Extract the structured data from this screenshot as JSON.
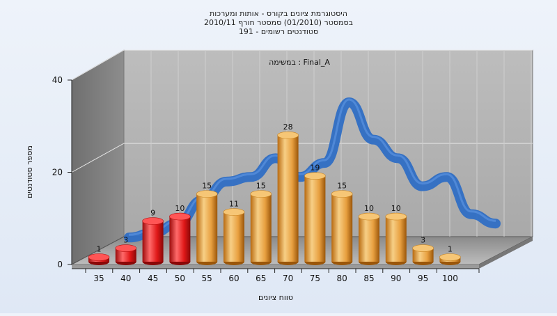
{
  "chart_data": {
    "type": "bar",
    "title_lines": [
      "היסטוגרמת ציונים בקורס - אותות ומערכות",
      "בסמסטר  (01/2010)  סמסטר חורף 2010/11",
      "סטודנטים רשומים - 191"
    ],
    "annotation": "Final_A : במשימה",
    "categories": [
      "35",
      "40",
      "45",
      "50",
      "55",
      "60",
      "65",
      "70",
      "75",
      "80",
      "85",
      "90",
      "95",
      "100"
    ],
    "values": [
      1,
      3,
      9,
      10,
      15,
      11,
      15,
      28,
      19,
      15,
      10,
      10,
      3,
      1
    ],
    "bar_colors": [
      "#e01818",
      "#e01818",
      "#e01818",
      "#e01818",
      "#e8a040",
      "#e8a040",
      "#e8a040",
      "#e8a040",
      "#e8a040",
      "#e8a040",
      "#e8a040",
      "#e8a040",
      "#e8a040",
      "#e8a040"
    ],
    "line_color": "#2f6ec4",
    "smooth_curve": [
      1,
      2,
      4,
      9,
      13,
      14,
      18,
      14,
      17,
      30,
      22,
      18,
      12,
      14,
      6,
      4
    ],
    "xlabel": "טווח ציונים",
    "ylabel": "מספר סטודנטים",
    "y_ticks": [
      0,
      20,
      40
    ],
    "ylim": [
      0,
      40
    ],
    "grid": true,
    "legend": "none"
  }
}
